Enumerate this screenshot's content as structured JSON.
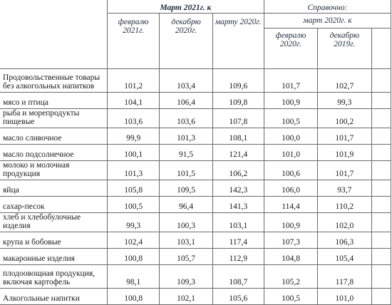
{
  "header": {
    "group_2021": "Март 2021г. к",
    "group_reference": "Справочно:",
    "sub_2020": "март 2020г. к",
    "col_feb2021": "февралю 2021г.",
    "col_dec2020": "декабрю 2020г.",
    "col_mar2020": "марту 2020г.",
    "col_feb2020": "февралю 2020г.",
    "col_dec2019": "декабрю 2019г."
  },
  "rows": [
    {
      "name": "Продовольственные товары без алкогольных напитков",
      "values": [
        "101,2",
        "103,4",
        "109,6",
        "101,7",
        "102,7"
      ]
    },
    {
      "name": "мясо и птица",
      "values": [
        "104,1",
        "106,4",
        "109,8",
        "100,9",
        "99,3"
      ]
    },
    {
      "name": "рыба и морепродукты пищевые",
      "values": [
        "103,6",
        "103,6",
        "107,8",
        "100,5",
        "100,2"
      ]
    },
    {
      "name": "масло сливочное",
      "values": [
        "99,9",
        "101,3",
        "108,1",
        "100,0",
        "101,7"
      ]
    },
    {
      "name": "масло подсолнечное",
      "values": [
        "100,1",
        "91,5",
        "121,4",
        "101,0",
        "101,9"
      ]
    },
    {
      "name": "молоко и молочная продукция",
      "values": [
        "101,3",
        "101,5",
        "106,2",
        "100,6",
        "101,7"
      ]
    },
    {
      "name": "яйца",
      "values": [
        "105,8",
        "109,5",
        "142,3",
        "106,0",
        "93,7"
      ]
    },
    {
      "name": "сахар-песок",
      "values": [
        "100,5",
        "96,4",
        "141,3",
        "114,4",
        "110,2"
      ]
    },
    {
      "name": "хлеб и хлебобулочные изделия",
      "values": [
        "99,3",
        "100,3",
        "103,1",
        "100,9",
        "102,0"
      ]
    },
    {
      "name": "крупа и бобовые",
      "values": [
        "102,4",
        "103,1",
        "117,4",
        "107,3",
        "106,3"
      ]
    },
    {
      "name": "макаронные изделия",
      "values": [
        "100,8",
        "105,7",
        "112,9",
        "104,8",
        "105,4"
      ]
    },
    {
      "name": "плодоовощная продукция, включая картофель",
      "values": [
        "98,1",
        "109,3",
        "108,7",
        "105,2",
        "117,8"
      ]
    },
    {
      "name": "Алкогольные напитки",
      "values": [
        "100,8",
        "102,1",
        "105,6",
        "100,5",
        "101,0"
      ]
    }
  ]
}
